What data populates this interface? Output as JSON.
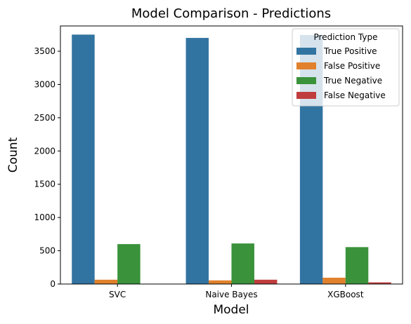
{
  "chart_data": {
    "type": "bar",
    "title": "Model Comparison - Predictions",
    "xlabel": "Model",
    "ylabel": "Count",
    "categories": [
      "SVC",
      "Naive Bayes",
      "XGBoost"
    ],
    "ylim": [
      0,
      3880
    ],
    "yticks": [
      0,
      500,
      1000,
      1500,
      2000,
      2500,
      3000,
      3500
    ],
    "grid": false,
    "legend": {
      "title": "Prediction Type",
      "placement": "top-right"
    },
    "series": [
      {
        "name": "True Positive",
        "color": "#3274a1",
        "values": [
          3750,
          3700,
          3745
        ]
      },
      {
        "name": "False Positive",
        "color": "#e1812c",
        "values": [
          65,
          55,
          95
        ]
      },
      {
        "name": "True Negative",
        "color": "#3a923a",
        "values": [
          600,
          610,
          555
        ]
      },
      {
        "name": "False Negative",
        "color": "#c03d3e",
        "values": [
          0,
          65,
          25
        ]
      }
    ]
  }
}
